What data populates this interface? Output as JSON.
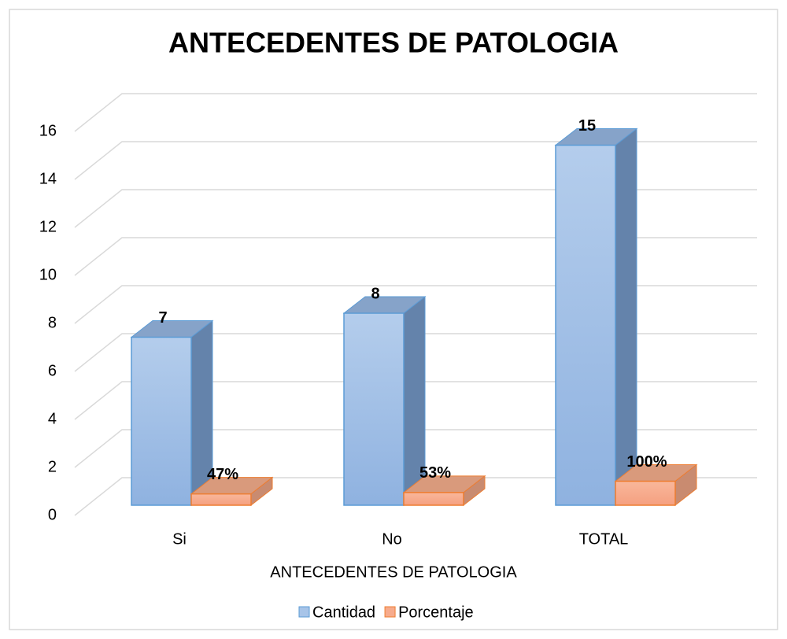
{
  "chart_data": {
    "type": "bar3d",
    "title": "ANTECEDENTES DE PATOLOGIA",
    "x_label": "ANTECEDENTES DE PATOLOGIA",
    "categories": [
      "Si",
      "No",
      "TOTAL"
    ],
    "series": [
      {
        "name": "Cantidad",
        "color": "#a7c4e8",
        "values": [
          7,
          8,
          15
        ],
        "value_labels": [
          "7",
          "8",
          "15"
        ]
      },
      {
        "name": "Porcentaje",
        "color": "#f7ab8c",
        "values": [
          0.47,
          0.53,
          1
        ],
        "value_labels": [
          "47%",
          "53%",
          "100%"
        ]
      }
    ],
    "ylim": [
      0,
      16
    ],
    "yticks": [
      0,
      2,
      4,
      6,
      8,
      10,
      12,
      14,
      16
    ],
    "grid": true,
    "legend": "bottom"
  }
}
